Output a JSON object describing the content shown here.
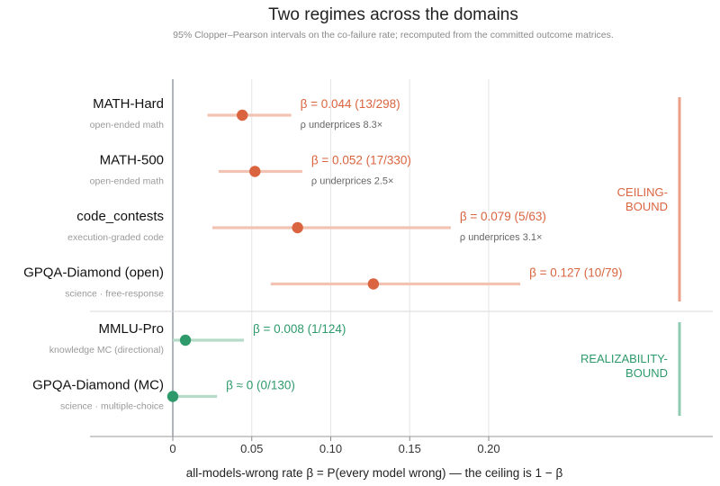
{
  "chart_data": {
    "type": "forest",
    "title": "Two regimes across the domains",
    "subtitle": "95% Clopper–Pearson intervals on the co-failure rate; recomputed from the committed outcome matrices.",
    "xlabel": "all-models-wrong rate  β = P(every model wrong)  —  the ceiling is 1 − β",
    "xlim": [
      0,
      0.2
    ],
    "xticks": [
      "0",
      "0.05",
      "0.10",
      "0.15",
      "0.20"
    ],
    "grid": true,
    "colors": {
      "ceiling": "#d9643f",
      "realizability": "#2e9a6b",
      "ceiling_ci": "#f2c3b3",
      "realizability_ci": "#b6dcc9"
    },
    "groups": [
      {
        "name": "CEILING-BOUND",
        "lines": [
          "CEILING-",
          "BOUND"
        ]
      },
      {
        "name": "REALIZABILITY-BOUND",
        "lines": [
          "REALIZABILITY-",
          "BOUND"
        ]
      }
    ],
    "rows": [
      {
        "domain": "MATH-Hard",
        "subtitle": "open-ended math",
        "group": 0,
        "beta": 0.044,
        "ci": [
          0.022,
          0.075
        ],
        "label": "β = 0.044  (13/298)",
        "note": "ρ underprices 8.3×"
      },
      {
        "domain": "MATH-500",
        "subtitle": "open-ended math",
        "group": 0,
        "beta": 0.052,
        "ci": [
          0.029,
          0.082
        ],
        "label": "β = 0.052  (17/330)",
        "note": "ρ underprices 2.5×"
      },
      {
        "domain": "code_contests",
        "subtitle": "execution-graded code",
        "group": 0,
        "beta": 0.079,
        "ci": [
          0.025,
          0.176
        ],
        "label": "β = 0.079  (5/63)",
        "note": "ρ underprices 3.1×"
      },
      {
        "domain": "GPQA-Diamond  (open)",
        "subtitle": "science · free-response",
        "group": 0,
        "beta": 0.127,
        "ci": [
          0.062,
          0.22
        ],
        "label": "β = 0.127  (10/79)",
        "note": ""
      },
      {
        "domain": "MMLU-Pro",
        "subtitle": "knowledge MC (directional)",
        "group": 1,
        "beta": 0.008,
        "ci": [
          0.0,
          0.045
        ],
        "label": "β = 0.008  (1/124)",
        "note": ""
      },
      {
        "domain": "GPQA-Diamond  (MC)",
        "subtitle": "science · multiple-choice",
        "group": 1,
        "beta": 0.0,
        "ci": [
          0.0,
          0.028
        ],
        "label": "β ≈ 0  (0/130)",
        "note": ""
      }
    ]
  }
}
